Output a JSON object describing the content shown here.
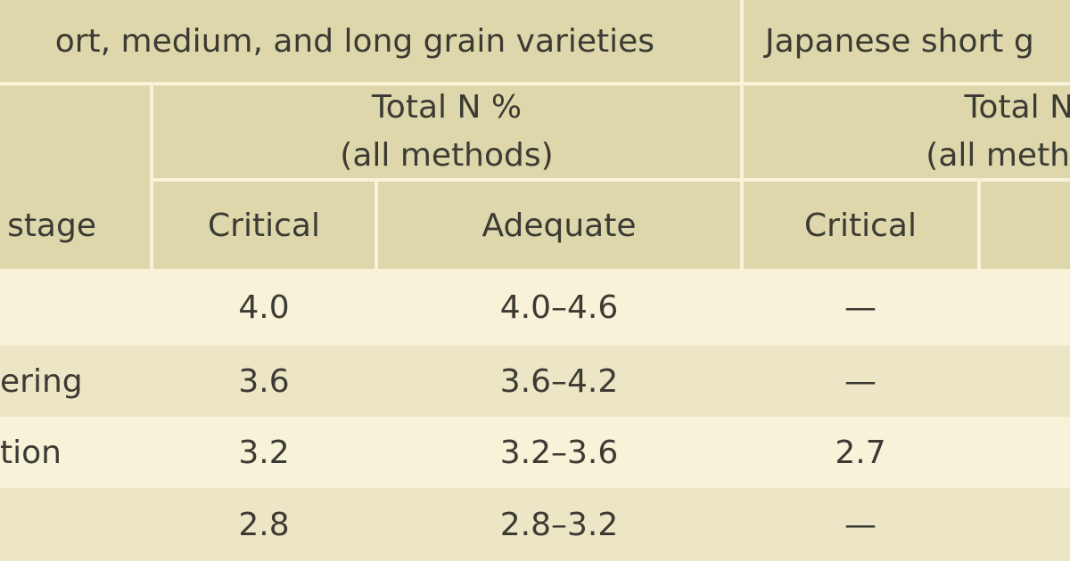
{
  "table": {
    "group_headers": [
      "ort, medium, and long grain varieties",
      "Japanese short g"
    ],
    "subheaders": [
      {
        "line1": "Total N %",
        "line2": "(all methods)"
      },
      {
        "line1": "Total N",
        "line2": "(all meth"
      }
    ],
    "stage_header": "stage",
    "col_headers": [
      "Critical",
      "Adequate",
      "Critical"
    ],
    "rows": [
      {
        "stage": "",
        "c1": "4.0",
        "a1": "4.0–4.6",
        "c2": "—"
      },
      {
        "stage": "ering",
        "c1": "3.6",
        "a1": "3.6–4.2",
        "c2": "—"
      },
      {
        "stage": "tion",
        "c1": "3.2",
        "a1": "3.2–3.6",
        "c2": "2.7"
      },
      {
        "stage": "",
        "c1": "2.8",
        "a1": "2.8–3.2",
        "c2": "—"
      }
    ]
  }
}
